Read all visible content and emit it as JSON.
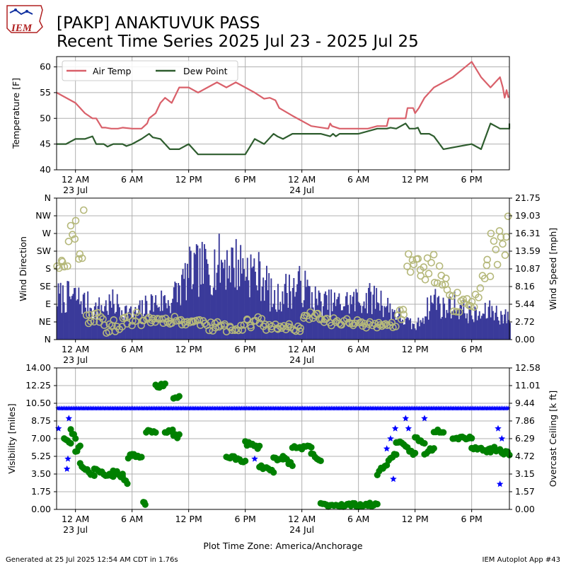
{
  "header": {
    "logo_text": "IEM",
    "title_line1": "[PAKP] ANAKTUVUK PASS",
    "title_line2": "Recent Time Series 2025 Jul 23 - 2025 Jul 25"
  },
  "footer": {
    "generated": "Generated at 25 Jul 2025 12:54 AM CDT in 1.76s",
    "app": "IEM Autoplot App #43"
  },
  "colors": {
    "air_temp": "#d9606a",
    "dew_point": "#2e5d2e",
    "wind_speed": "#3a3a9a",
    "wind_direction": "#b5b87a",
    "visibility": "#0000ff",
    "ceiling": "#008000",
    "grid": "#b0b0b0"
  },
  "x_axis": {
    "timezone_label": "Plot Time Zone: America/Anchorage",
    "range_hours": [
      -2,
      46
    ],
    "ticks": [
      {
        "h": 0,
        "label": "12 AM",
        "date": "23 Jul"
      },
      {
        "h": 6,
        "label": "6 AM",
        "date": ""
      },
      {
        "h": 12,
        "label": "12 PM",
        "date": ""
      },
      {
        "h": 18,
        "label": "6 PM",
        "date": ""
      },
      {
        "h": 24,
        "label": "12 AM",
        "date": "24 Jul"
      },
      {
        "h": 30,
        "label": "6 AM",
        "date": ""
      },
      {
        "h": 36,
        "label": "12 PM",
        "date": ""
      },
      {
        "h": 42,
        "label": "6 PM",
        "date": ""
      }
    ]
  },
  "chart_data": [
    {
      "type": "line",
      "ylabel": "Temperature [F]",
      "ylim": [
        40,
        62
      ],
      "yticks": [
        "40",
        "45",
        "50",
        "55",
        "60"
      ],
      "legend": "top-left",
      "grid": true,
      "series": [
        {
          "name": "Air Temp",
          "points": [
            [
              -2,
              55
            ],
            [
              0,
              53
            ],
            [
              1,
              51
            ],
            [
              1.8,
              50
            ],
            [
              2.2,
              50
            ],
            [
              2.8,
              48.2
            ],
            [
              3.2,
              48.2
            ],
            [
              3.8,
              48
            ],
            [
              4.5,
              48
            ],
            [
              5,
              48.2
            ],
            [
              6,
              48
            ],
            [
              7,
              48
            ],
            [
              7.6,
              49
            ],
            [
              7.8,
              50
            ],
            [
              8.5,
              51
            ],
            [
              9,
              53
            ],
            [
              9.5,
              54
            ],
            [
              10.2,
              53
            ],
            [
              11,
              56
            ],
            [
              12,
              56
            ],
            [
              13,
              55
            ],
            [
              14,
              56
            ],
            [
              15,
              57
            ],
            [
              16,
              56
            ],
            [
              17,
              57
            ],
            [
              18,
              56
            ],
            [
              19,
              55
            ],
            [
              20,
              53.8
            ],
            [
              20.6,
              54
            ],
            [
              21.2,
              53.5
            ],
            [
              21.6,
              52
            ],
            [
              23,
              50.5
            ],
            [
              25,
              48.5
            ],
            [
              26.8,
              48
            ],
            [
              27,
              49
            ],
            [
              27.2,
              48.5
            ],
            [
              28,
              48
            ],
            [
              31,
              48
            ],
            [
              32,
              48.5
            ],
            [
              33,
              48.5
            ],
            [
              33.2,
              50
            ],
            [
              35,
              50
            ],
            [
              35.2,
              52
            ],
            [
              35.8,
              52
            ],
            [
              36,
              51
            ],
            [
              36.4,
              52
            ],
            [
              37,
              54
            ],
            [
              38,
              56
            ],
            [
              40,
              58
            ],
            [
              42,
              61
            ],
            [
              43,
              58
            ],
            [
              44,
              56
            ],
            [
              45,
              58
            ],
            [
              45.3,
              56
            ],
            [
              45.5,
              54
            ],
            [
              45.7,
              55.5
            ],
            [
              45.9,
              54
            ]
          ]
        },
        {
          "name": "Dew Point",
          "points": [
            [
              -2,
              45
            ],
            [
              -1,
              45
            ],
            [
              0,
              46
            ],
            [
              1,
              46
            ],
            [
              1.8,
              46.5
            ],
            [
              2.2,
              45
            ],
            [
              3,
              45
            ],
            [
              3.4,
              44.5
            ],
            [
              4,
              45
            ],
            [
              5,
              45
            ],
            [
              5.4,
              44.6
            ],
            [
              6,
              45
            ],
            [
              7,
              46
            ],
            [
              7.8,
              47
            ],
            [
              8.2,
              46.3
            ],
            [
              9,
              46
            ],
            [
              10,
              44
            ],
            [
              11,
              44
            ],
            [
              12,
              45
            ],
            [
              13,
              43
            ],
            [
              18,
              43
            ],
            [
              19,
              46
            ],
            [
              20,
              45
            ],
            [
              21,
              47
            ],
            [
              21.4,
              46.5
            ],
            [
              22,
              46
            ],
            [
              23,
              47
            ],
            [
              26,
              47
            ],
            [
              27,
              46.5
            ],
            [
              27.3,
              47
            ],
            [
              27.6,
              46.5
            ],
            [
              28,
              47
            ],
            [
              30,
              47
            ],
            [
              32,
              48
            ],
            [
              33,
              48
            ],
            [
              33.4,
              48.2
            ],
            [
              34,
              48
            ],
            [
              35,
              49
            ],
            [
              35.4,
              48
            ],
            [
              36,
              48
            ],
            [
              36.3,
              48.2
            ],
            [
              36.6,
              47
            ],
            [
              37.5,
              47
            ],
            [
              38,
              46.5
            ],
            [
              39,
              44
            ],
            [
              42,
              45
            ],
            [
              43,
              44
            ],
            [
              44,
              49
            ],
            [
              45,
              48
            ],
            [
              46,
              48
            ],
            [
              46,
              49
            ]
          ]
        }
      ]
    },
    {
      "type": "bar",
      "ylabel": "Wind Direction",
      "y2label": "Wind Speed [mph]",
      "ylim": [
        0,
        360
      ],
      "y2lim": [
        0,
        21.75
      ],
      "yticks": [
        "N",
        "NE",
        "E",
        "SE",
        "S",
        "SW",
        "W",
        "NW",
        "N"
      ],
      "y2ticks": [
        "0.00",
        "2.72",
        "5.44",
        "8.16",
        "10.87",
        "13.59",
        "16.31",
        "19.03",
        "21.75"
      ],
      "grid": true,
      "speed_profile": [
        [
          -2,
          7
        ],
        [
          0,
          7
        ],
        [
          2,
          5
        ],
        [
          4,
          6
        ],
        [
          5,
          5
        ],
        [
          6,
          4
        ],
        [
          8,
          6
        ],
        [
          10,
          6.5
        ],
        [
          11,
          8.5
        ],
        [
          12,
          11
        ],
        [
          13,
          11.5
        ],
        [
          14,
          12
        ],
        [
          15,
          12.5
        ],
        [
          16,
          13
        ],
        [
          18,
          12
        ],
        [
          20,
          10
        ],
        [
          21,
          6
        ],
        [
          22,
          8
        ],
        [
          24,
          9
        ],
        [
          25,
          7
        ],
        [
          26,
          6
        ],
        [
          27,
          6
        ],
        [
          28,
          6
        ],
        [
          30,
          6.5
        ],
        [
          32,
          7
        ],
        [
          33,
          5.5
        ],
        [
          35,
          3
        ],
        [
          36,
          2
        ],
        [
          37,
          4.5
        ],
        [
          38,
          7
        ],
        [
          39,
          5
        ],
        [
          40,
          6
        ],
        [
          42,
          4
        ],
        [
          43,
          4
        ],
        [
          44,
          5
        ],
        [
          45,
          4
        ],
        [
          46,
          3.5
        ]
      ],
      "direction_segments": [
        [
          -2,
          -0.8,
          180,
          205
        ],
        [
          -0.8,
          1,
          200,
          340
        ],
        [
          1,
          3,
          40,
          70
        ],
        [
          3,
          5,
          15,
          50
        ],
        [
          5,
          8,
          35,
          70
        ],
        [
          8,
          11,
          40,
          60
        ],
        [
          11,
          14,
          35,
          55
        ],
        [
          14,
          18,
          20,
          45
        ],
        [
          18,
          20,
          30,
          60
        ],
        [
          20,
          24,
          20,
          40
        ],
        [
          24,
          26,
          50,
          70
        ],
        [
          26,
          30,
          35,
          55
        ],
        [
          30,
          34,
          30,
          45
        ],
        [
          34,
          35,
          40,
          80
        ],
        [
          35,
          38,
          150,
          220
        ],
        [
          38,
          40,
          110,
          200
        ],
        [
          40,
          41,
          60,
          120
        ],
        [
          41,
          43,
          80,
          140
        ],
        [
          43,
          44,
          140,
          210
        ],
        [
          44,
          46,
          170,
          320
        ]
      ]
    },
    {
      "type": "scatter",
      "ylabel": "Visibility [miles]",
      "y2label": "Overcast Ceiling [k ft]",
      "ylim": [
        0,
        14
      ],
      "y2lim": [
        0,
        12.58
      ],
      "yticks": [
        "0.00",
        "1.75",
        "3.50",
        "5.25",
        "7.00",
        "8.75",
        "10.50",
        "12.25",
        "14.00"
      ],
      "y2ticks": [
        "0.00",
        "1.57",
        "3.15",
        "4.72",
        "6.29",
        "7.86",
        "9.44",
        "11.01",
        "12.58"
      ],
      "grid": true,
      "visibility_typical": 10,
      "visibility_dips": [
        [
          -1.8,
          8
        ],
        [
          -0.9,
          4
        ],
        [
          -0.8,
          5
        ],
        [
          -0.7,
          9
        ],
        [
          19,
          5
        ],
        [
          33,
          6
        ],
        [
          33.4,
          7
        ],
        [
          33.7,
          3
        ],
        [
          33.9,
          8
        ],
        [
          35,
          9
        ],
        [
          35.3,
          8
        ],
        [
          37,
          9
        ],
        [
          42,
          7
        ],
        [
          44.8,
          8
        ],
        [
          45,
          2.5
        ],
        [
          45.2,
          7
        ]
      ],
      "ceiling_segments": [
        [
          -1.2,
          -0.5,
          6.4,
          5.8
        ],
        [
          -0.5,
          0,
          7,
          6.4
        ],
        [
          0,
          0.5,
          5,
          5.8
        ],
        [
          0.5,
          2,
          4,
          3
        ],
        [
          2,
          4,
          3.5,
          2.9
        ],
        [
          4,
          5,
          3.5,
          2.9
        ],
        [
          5,
          5.5,
          3,
          2.3
        ],
        [
          5.6,
          6,
          4.5,
          4.9
        ],
        [
          6,
          7,
          5,
          4.5
        ],
        [
          7.2,
          7.4,
          0.8,
          0.5
        ],
        [
          7.5,
          8.5,
          7,
          7
        ],
        [
          8.5,
          9.5,
          11,
          11
        ],
        [
          9.5,
          10.3,
          7,
          7
        ],
        [
          10.4,
          11,
          9.9,
          9.9
        ],
        [
          10.4,
          11,
          6.5,
          6.5
        ],
        [
          16,
          18,
          4.7,
          4.3
        ],
        [
          18,
          19.5,
          5.9,
          5.5
        ],
        [
          19.5,
          21,
          3.9,
          3.4
        ],
        [
          21,
          22,
          4.7,
          4.3
        ],
        [
          22,
          23,
          4.7,
          3.9
        ],
        [
          23,
          25,
          5.5,
          5.5
        ],
        [
          25,
          26,
          4.9,
          4.3
        ],
        [
          26,
          29,
          0.4,
          0.4
        ],
        [
          29,
          32,
          0.4,
          0.4
        ],
        [
          32,
          34,
          3.2,
          5
        ],
        [
          34,
          36,
          6.1,
          4.9
        ],
        [
          36,
          37,
          6.4,
          5.8
        ],
        [
          37,
          38,
          5,
          5.5
        ],
        [
          38,
          39,
          7,
          7
        ],
        [
          40,
          42,
          6.4,
          6.4
        ],
        [
          42,
          44,
          5.5,
          5.2
        ],
        [
          44,
          46,
          5.5,
          4.9
        ]
      ]
    }
  ]
}
